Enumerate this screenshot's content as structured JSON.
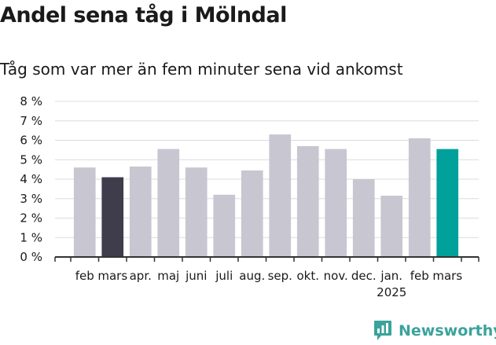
{
  "header": {
    "title": "Andel sena tåg i Mölndal",
    "subtitle": "Tåg som var mer än fem minuter sena vid ankomst"
  },
  "brand": {
    "name": "Newsworthy",
    "icon": "newsworthy-logo-icon",
    "color": "#3aa39b"
  },
  "chart_data": {
    "type": "bar",
    "categories": [
      "feb",
      "mars",
      "apr.",
      "maj",
      "juni",
      "juli",
      "aug.",
      "sep.",
      "okt.",
      "nov.",
      "dec.",
      "jan.",
      "feb",
      "mars"
    ],
    "values": [
      4.6,
      4.1,
      4.65,
      5.55,
      4.6,
      3.2,
      4.45,
      6.3,
      5.7,
      5.55,
      4.0,
      3.15,
      6.1,
      5.55
    ],
    "year_labels": [
      {
        "index": 11,
        "label": "2025"
      }
    ],
    "yticks": [
      "0 %",
      "1 %",
      "2 %",
      "3 %",
      "4 %",
      "5 %",
      "6 %",
      "7 %",
      "8 %"
    ],
    "ylim": [
      0,
      8
    ],
    "colors": [
      "#c8c6d0",
      "#3f3c4c",
      "#c8c6d0",
      "#c8c6d0",
      "#c8c6d0",
      "#c8c6d0",
      "#c8c6d0",
      "#c8c6d0",
      "#c8c6d0",
      "#c8c6d0",
      "#c8c6d0",
      "#c8c6d0",
      "#c8c6d0",
      "#00a19a"
    ],
    "grid": true,
    "title": "",
    "xlabel": "",
    "ylabel": ""
  }
}
